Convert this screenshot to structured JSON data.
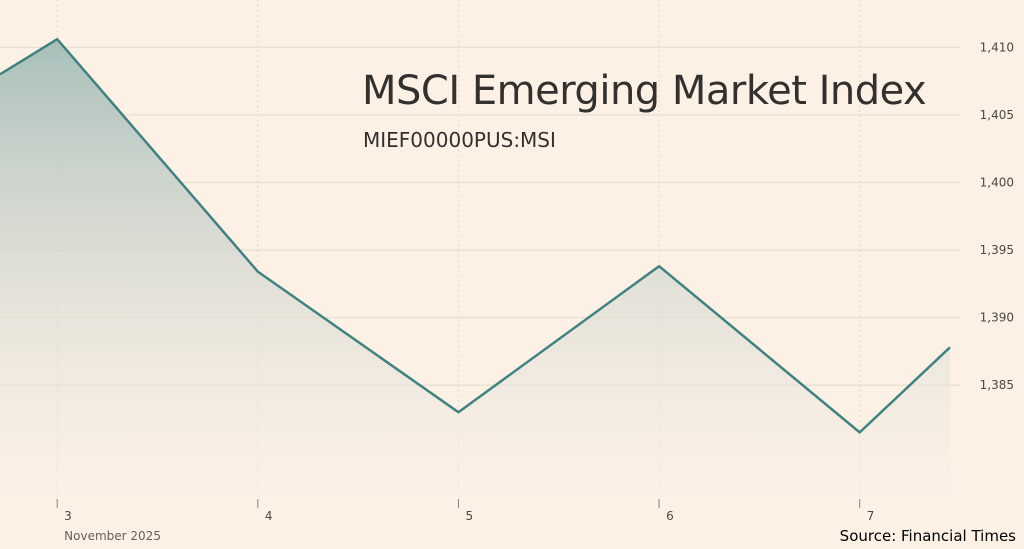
{
  "chart_data": {
    "type": "area",
    "title": "MSCI Emerging Market Index",
    "subtitle": "MIEF00000PUS:MSI",
    "source": "Source: Financial Times",
    "x_label_sub": "November 2025",
    "x_ticks": [
      "3",
      "4",
      "5",
      "6",
      "7"
    ],
    "y_ticks": [
      1385,
      1390,
      1395,
      1400,
      1405,
      1410
    ],
    "ylim": [
      1376.5,
      1413.5
    ],
    "xlim": [
      2.715,
      7.45
    ],
    "grid": true,
    "series": [
      {
        "x": [
          2.715,
          3,
          4,
          5,
          6,
          7,
          7.45
        ],
        "values": [
          1408.0,
          1410.6,
          1393.4,
          1383.0,
          1393.8,
          1381.5,
          1387.8
        ]
      }
    ],
    "colors": {
      "line": "#3e8381",
      "area_top": "#a9bfba",
      "area_bottom": "#fdf1e6",
      "background": "#fdf1e6"
    }
  }
}
